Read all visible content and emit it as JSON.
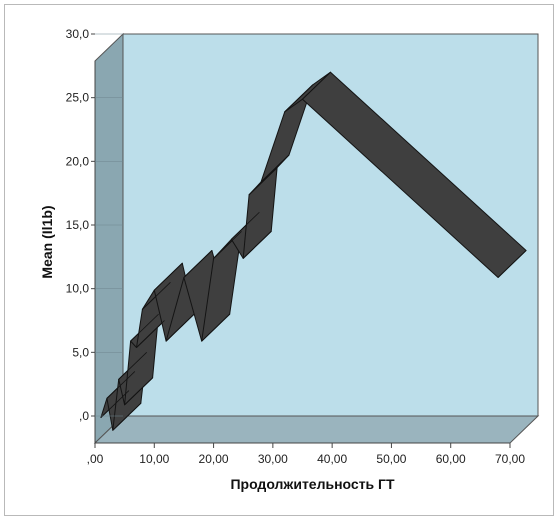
{
  "chart_data": {
    "type": "line",
    "title": "",
    "xlabel": "Продолжительность ГТ",
    "ylabel": "Mean (Il1b)",
    "xlim": [
      0,
      70
    ],
    "ylim": [
      0,
      30
    ],
    "grid": false,
    "three_d": true,
    "x_ticks": [
      ",00",
      "10,00",
      "20,00",
      "30,00",
      "40,00",
      "50,00",
      "60,00",
      "70,00"
    ],
    "y_ticks": [
      ",0",
      "5,0",
      "10,0",
      "15,0",
      "20,0",
      "25,0",
      "30,0"
    ],
    "x_tick_values": [
      0,
      10,
      20,
      30,
      40,
      50,
      60,
      70
    ],
    "y_tick_values": [
      0,
      5,
      10,
      15,
      20,
      25,
      30
    ],
    "series": [
      {
        "x": [
          1,
          2,
          3,
          4,
          5,
          6,
          7,
          8,
          10,
          12,
          15,
          18,
          20,
          23,
          25,
          26,
          28,
          32,
          35,
          68
        ],
        "y": [
          2,
          3.5,
          1,
          5,
          3,
          8,
          7.5,
          10.5,
          12,
          8,
          13,
          8,
          14.5,
          16,
          14.5,
          19.5,
          20.5,
          26,
          27,
          13
        ]
      }
    ],
    "colors": {
      "plot_back": "#bcdeea",
      "left_wall": "#8aa7b1",
      "floor": "#9ab4be",
      "ribbon": "#3f3f3f",
      "ribbon_edge": "#141414"
    }
  }
}
